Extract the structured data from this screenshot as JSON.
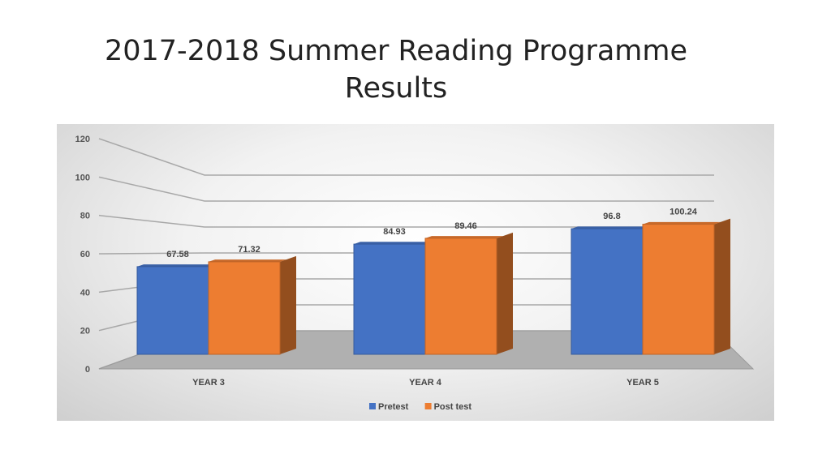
{
  "slide": {
    "title_line1": "2017-2018 Summer Reading Programme",
    "title_line2": "Results"
  },
  "chart_data": {
    "type": "bar",
    "categories": [
      "YEAR 3",
      "YEAR 4",
      "YEAR 5"
    ],
    "series": [
      {
        "name": "Pretest",
        "values": [
          67.58,
          84.93,
          96.8
        ],
        "color": "#4472c4"
      },
      {
        "name": "Post test",
        "values": [
          71.32,
          89.46,
          100.24
        ],
        "color": "#ed7d31"
      }
    ],
    "data_labels": [
      [
        "67.58",
        "84.93",
        "96.8"
      ],
      [
        "71.32",
        "89.46",
        "100.24"
      ]
    ],
    "yticks": [
      "0",
      "20",
      "40",
      "60",
      "80",
      "100",
      "120"
    ],
    "ylim": [
      0,
      120
    ],
    "title": "",
    "xlabel": "",
    "ylabel": "",
    "grid": true,
    "legend": "bottom",
    "style": "3d-clustered-column"
  }
}
